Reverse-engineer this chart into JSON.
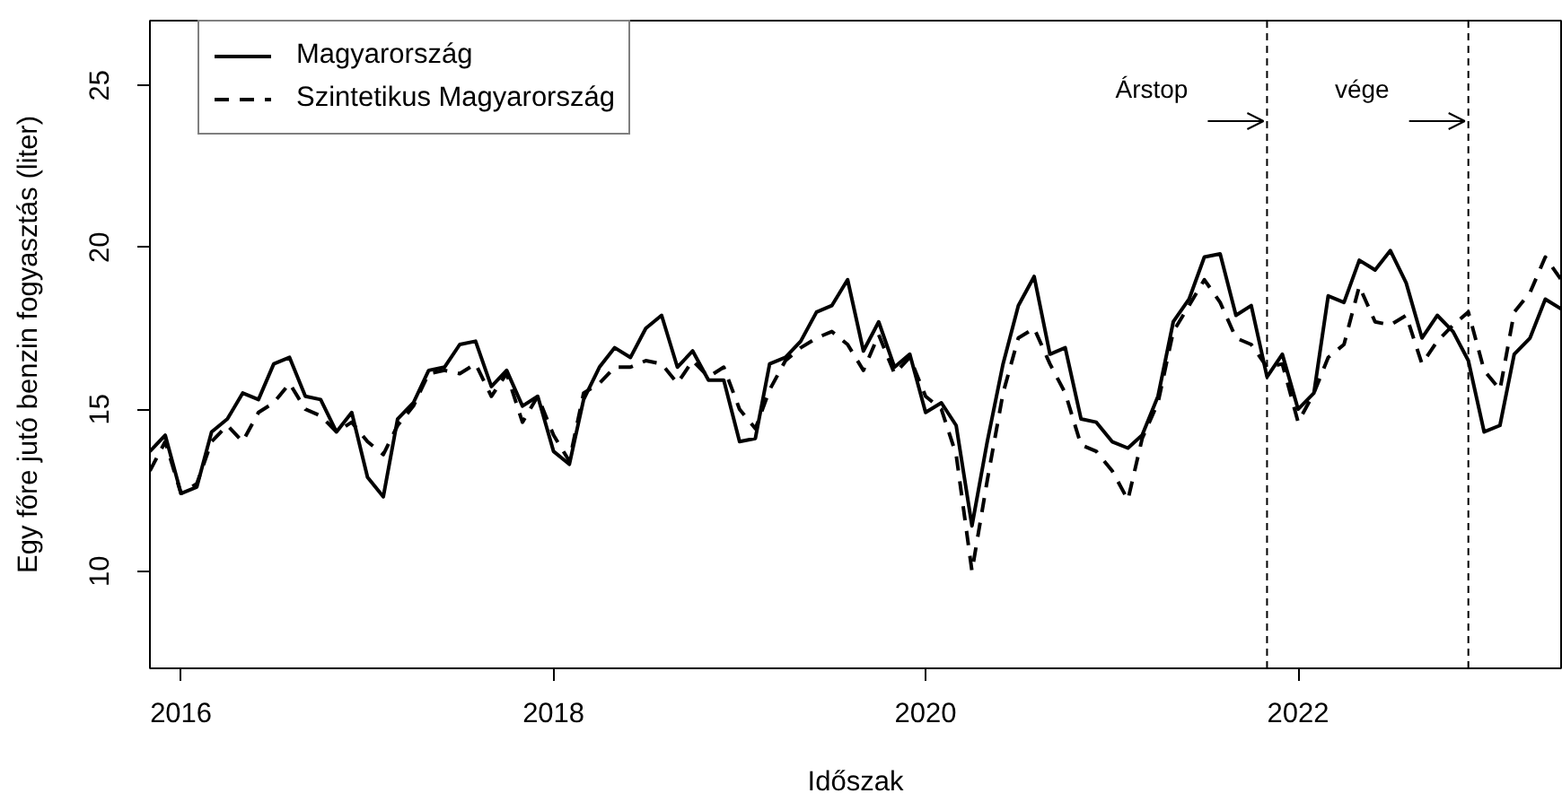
{
  "chart_data": {
    "type": "line",
    "xlabel": "Időszak",
    "ylabel": "Egy főre jutó benzin fogyasztás (liter)",
    "x": [
      "2015-11",
      "2015-12",
      "2016-01",
      "2016-02",
      "2016-03",
      "2016-04",
      "2016-05",
      "2016-06",
      "2016-07",
      "2016-08",
      "2016-09",
      "2016-10",
      "2016-11",
      "2016-12",
      "2017-01",
      "2017-02",
      "2017-03",
      "2017-04",
      "2017-05",
      "2017-06",
      "2017-07",
      "2017-08",
      "2017-09",
      "2017-10",
      "2017-11",
      "2017-12",
      "2018-01",
      "2018-02",
      "2018-03",
      "2018-04",
      "2018-05",
      "2018-06",
      "2018-07",
      "2018-08",
      "2018-09",
      "2018-10",
      "2018-11",
      "2018-12",
      "2019-01",
      "2019-02",
      "2019-03",
      "2019-04",
      "2019-05",
      "2019-06",
      "2019-07",
      "2019-08",
      "2019-09",
      "2019-10",
      "2019-11",
      "2019-12",
      "2020-01",
      "2020-02",
      "2020-03",
      "2020-04",
      "2020-05",
      "2020-06",
      "2020-07",
      "2020-08",
      "2020-09",
      "2020-10",
      "2020-11",
      "2020-12",
      "2021-01",
      "2021-02",
      "2021-03",
      "2021-04",
      "2021-05",
      "2021-06",
      "2021-07",
      "2021-08",
      "2021-09",
      "2021-10",
      "2021-11",
      "2021-12",
      "2022-01",
      "2022-02",
      "2022-03",
      "2022-04",
      "2022-05",
      "2022-06",
      "2022-07",
      "2022-08",
      "2022-09",
      "2022-10",
      "2022-11",
      "2022-12",
      "2023-01",
      "2023-02",
      "2023-03",
      "2023-04",
      "2023-05",
      "2023-06"
    ],
    "series": [
      {
        "name": "Magyarország",
        "color": "#000000",
        "line_style": "solid",
        "values": [
          13.7,
          14.2,
          12.4,
          12.6,
          14.3,
          14.7,
          15.5,
          15.3,
          16.4,
          16.6,
          15.4,
          15.3,
          14.3,
          14.9,
          12.9,
          12.3,
          14.7,
          15.2,
          16.2,
          16.3,
          17.0,
          17.1,
          15.7,
          16.2,
          15.1,
          15.4,
          13.7,
          13.3,
          15.3,
          16.3,
          16.9,
          16.6,
          17.5,
          17.9,
          16.3,
          16.8,
          15.9,
          15.9,
          14.0,
          14.1,
          16.4,
          16.6,
          17.1,
          18.0,
          18.2,
          19.0,
          16.8,
          17.7,
          16.3,
          16.7,
          14.9,
          15.2,
          14.5,
          11.4,
          14.0,
          16.4,
          18.2,
          19.1,
          16.7,
          16.9,
          14.7,
          14.6,
          14.0,
          13.8,
          14.2,
          15.4,
          17.7,
          18.4,
          19.7,
          19.8,
          17.9,
          18.2,
          16.0,
          16.7,
          15.0,
          15.5,
          18.5,
          18.3,
          19.6,
          19.3,
          19.9,
          18.9,
          17.2,
          17.9,
          17.4,
          16.5,
          14.3,
          14.5,
          16.7,
          17.2,
          18.4,
          18.1
        ]
      },
      {
        "name": "Szintetikus Magyarország",
        "color": "#000000",
        "line_style": "dashed",
        "values": [
          13.1,
          14.0,
          12.4,
          12.7,
          14.0,
          14.5,
          14.0,
          14.9,
          15.2,
          15.8,
          15.0,
          14.8,
          14.3,
          14.6,
          14.0,
          13.6,
          14.5,
          15.1,
          16.1,
          16.2,
          16.1,
          16.4,
          15.4,
          16.1,
          14.6,
          15.4,
          14.2,
          13.4,
          15.5,
          15.8,
          16.3,
          16.3,
          16.5,
          16.4,
          15.8,
          16.5,
          16.0,
          16.3,
          15.0,
          14.4,
          15.6,
          16.5,
          16.9,
          17.2,
          17.4,
          17.0,
          16.2,
          17.3,
          16.1,
          16.6,
          15.4,
          15.0,
          13.6,
          10.0,
          12.8,
          15.5,
          17.2,
          17.5,
          16.4,
          15.5,
          13.9,
          13.7,
          13.1,
          12.2,
          14.1,
          15.2,
          17.4,
          18.2,
          19.0,
          18.3,
          17.2,
          17.0,
          16.3,
          16.4,
          14.6,
          15.5,
          16.6,
          17.0,
          18.8,
          17.7,
          17.6,
          17.9,
          16.4,
          17.1,
          17.6,
          18.0,
          16.2,
          15.6,
          18.0,
          18.6,
          19.7,
          19.0
        ]
      }
    ],
    "xlim": [
      "2015-11",
      "2023-06"
    ],
    "ylim": [
      7,
      27
    ],
    "xticks": [
      "2016",
      "2018",
      "2020",
      "2022"
    ],
    "yticks": [
      10,
      15,
      20,
      25
    ],
    "grid": false,
    "legend": "top left",
    "marker": "none",
    "ref_lines": [
      {
        "axis": "x",
        "value": "2021-11",
        "label": "Árstop",
        "color": "#000000",
        "line_style": "dashed"
      },
      {
        "axis": "x",
        "value": "2022-12",
        "label": "vége",
        "color": "#000000",
        "line_style": "dashed"
      }
    ]
  }
}
